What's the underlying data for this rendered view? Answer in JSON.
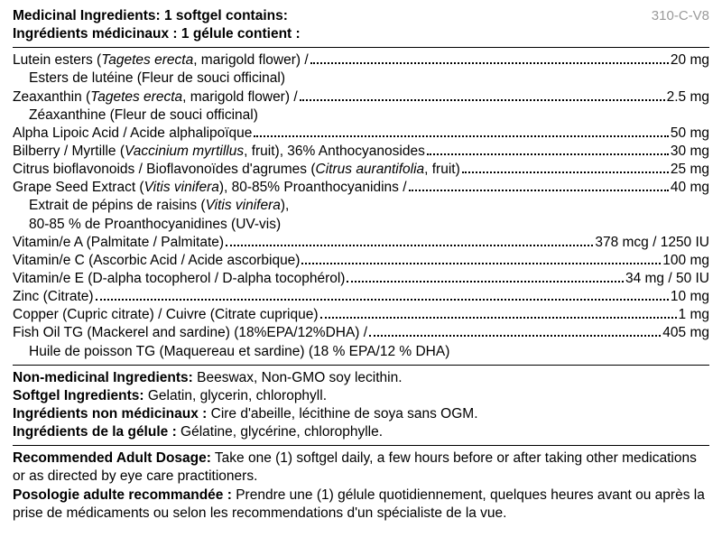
{
  "code": "310-C-V8",
  "header": {
    "en": "Medicinal Ingredients: 1 softgel contains:",
    "fr": "Ingrédients médicinaux : 1 gélule contient :"
  },
  "ingredients": [
    {
      "label_html": "Lutein esters (<i>Tagetes erecta</i>, marigold flower) /",
      "sub": "Esters de lutéine (Fleur de souci officinal)",
      "amount": "20 mg"
    },
    {
      "label_html": "Zeaxanthin (<i>Tagetes erecta</i>, marigold flower) /",
      "sub": "Zéaxanthine (Fleur de souci officinal)",
      "amount": "2.5 mg"
    },
    {
      "label_html": "Alpha Lipoic Acid / Acide alphalipoïque",
      "amount": "50 mg"
    },
    {
      "label_html": "Bilberry / Myrtille (<i>Vaccinium myrtillus</i>, fruit), 36% Anthocyanosides",
      "amount": "30 mg"
    },
    {
      "label_html": "Citrus bioflavonoids / Bioflavonoïdes d'agrumes (<i>Citrus aurantifolia</i>, fruit)",
      "amount": "25 mg"
    },
    {
      "label_html": "Grape Seed Extract (<i>Vitis vinifera</i>), 80-85% Proanthocyanidins /",
      "sub_html": "Extrait de pépins de raisins (<i>Vitis vinifera</i>),<br>80-85 % de Proanthocyanidines (UV-vis)",
      "amount": "40 mg"
    },
    {
      "label_html": "Vitamin/e A (Palmitate / Palmitate)",
      "amount": "378 mcg / 1250 IU"
    },
    {
      "label_html": "Vitamin/e C (Ascorbic Acid / Acide ascorbique)",
      "amount": "100 mg"
    },
    {
      "label_html": "Vitamin/e E (D-alpha tocopherol / D-alpha tocophérol)",
      "amount": "34 mg / 50 IU"
    },
    {
      "label_html": "Zinc (Citrate)",
      "amount": "10 mg"
    },
    {
      "label_html": "Copper (Cupric citrate) / Cuivre (Citrate cuprique)",
      "amount": "1 mg"
    },
    {
      "label_html": "Fish Oil TG (Mackerel and sardine) (18%EPA/12%DHA) /",
      "sub": "Huile de poisson TG (Maquereau et sardine) (18 % EPA/12 % DHA)",
      "amount": "405 mg"
    }
  ],
  "nonmed": {
    "en_label": "Non-medicinal Ingredients:",
    "en_text": " Beeswax, Non-GMO soy lecithin.",
    "softgel_en_label": "Softgel Ingredients:",
    "softgel_en_text": " Gelatin, glycerin, chlorophyll.",
    "fr_label": "Ingrédients non médicinaux :",
    "fr_text": " Cire d'abeille, lécithine de soya sans OGM.",
    "softgel_fr_label": "Ingrédients de la gélule :",
    "softgel_fr_text": " Gélatine, glycérine, chlorophylle."
  },
  "dosage": {
    "en_label": "Recommended Adult Dosage:",
    "en_text": " Take one (1) softgel daily, a few hours before or after taking other medications or as directed by eye care practitioners.",
    "fr_label": "Posologie adulte recommandée :",
    "fr_text": " Prendre une (1) gélule quotidiennement, quelques heures avant ou après la prise de médicaments ou selon les recommendations d'un spécialiste de la vue."
  }
}
